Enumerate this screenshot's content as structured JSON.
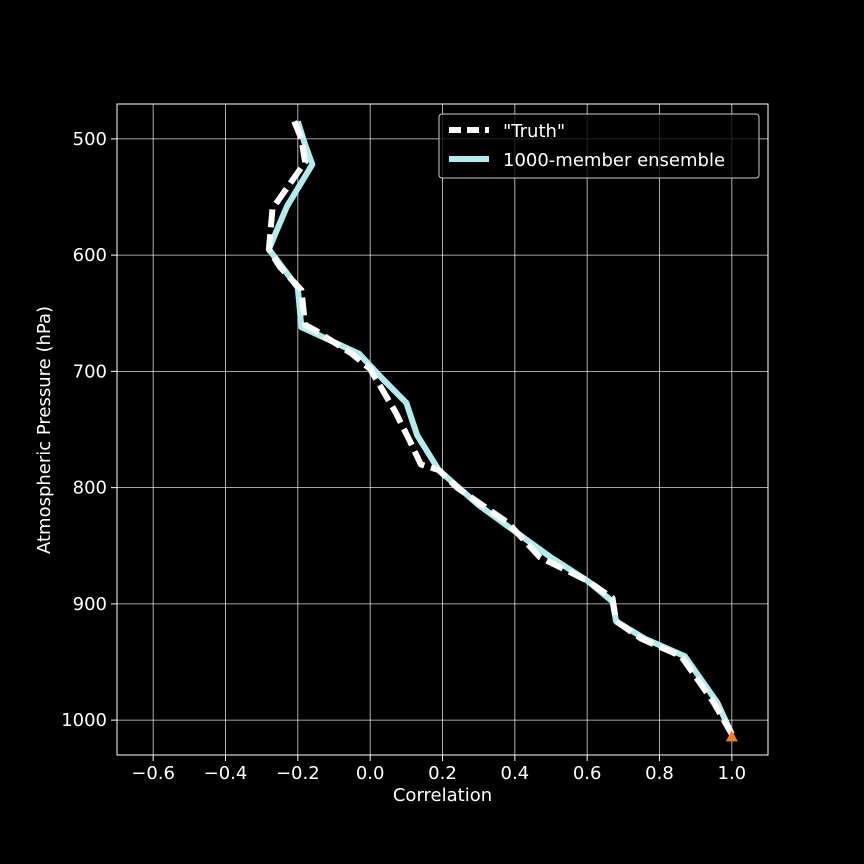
{
  "chart_data": {
    "type": "line",
    "title": "",
    "xlabel": "Correlation",
    "ylabel": "Atmospheric Pressure (hPa)",
    "xlim": [
      -0.7,
      1.1
    ],
    "ylim": [
      1030,
      470
    ],
    "y_inverted": true,
    "grid": true,
    "legend_position": "top-right",
    "x_ticks": [
      -0.6,
      -0.4,
      -0.2,
      0.0,
      0.2,
      0.4,
      0.6,
      0.8,
      1.0
    ],
    "x_tick_labels": [
      "−0.6",
      "−0.4",
      "−0.2",
      "0.0",
      "0.2",
      "0.4",
      "0.6",
      "0.8",
      "1.0"
    ],
    "y_ticks": [
      500,
      600,
      700,
      800,
      900,
      1000
    ],
    "y_tick_labels": [
      "500",
      "600",
      "700",
      "800",
      "900",
      "1000"
    ],
    "series": [
      {
        "name": "\"Truth\"",
        "style": "dashed",
        "color": "#ffffff",
        "x": [
          -0.21,
          -0.19,
          -0.18,
          -0.27,
          -0.28,
          -0.25,
          -0.19,
          -0.18,
          -0.15,
          -0.05,
          0.0,
          0.07,
          0.11,
          0.14,
          0.19,
          0.24,
          0.38,
          0.47,
          0.6,
          0.67,
          0.68,
          0.75,
          0.86,
          0.95,
          1.0
        ],
        "y": [
          485,
          500,
          520,
          560,
          595,
          610,
          630,
          660,
          665,
          685,
          698,
          735,
          760,
          780,
          785,
          800,
          830,
          860,
          880,
          895,
          915,
          930,
          945,
          985,
          1012
        ]
      },
      {
        "name": "1000-member ensemble",
        "style": "solid",
        "color": "#aeeeee",
        "x": [
          -0.2,
          -0.18,
          -0.16,
          -0.23,
          -0.26,
          -0.28,
          -0.2,
          -0.19,
          -0.03,
          0.03,
          0.1,
          0.13,
          0.19,
          0.3,
          0.5,
          0.6,
          0.67,
          0.68,
          0.76,
          0.87,
          0.96,
          1.0
        ],
        "y": [
          485,
          505,
          522,
          558,
          580,
          595,
          628,
          662,
          685,
          705,
          727,
          755,
          785,
          815,
          860,
          880,
          898,
          915,
          930,
          945,
          985,
          1012
        ]
      }
    ],
    "marker": {
      "shape": "triangle",
      "color": "#ff7f0e",
      "x": 1.0,
      "y": 1014
    }
  }
}
